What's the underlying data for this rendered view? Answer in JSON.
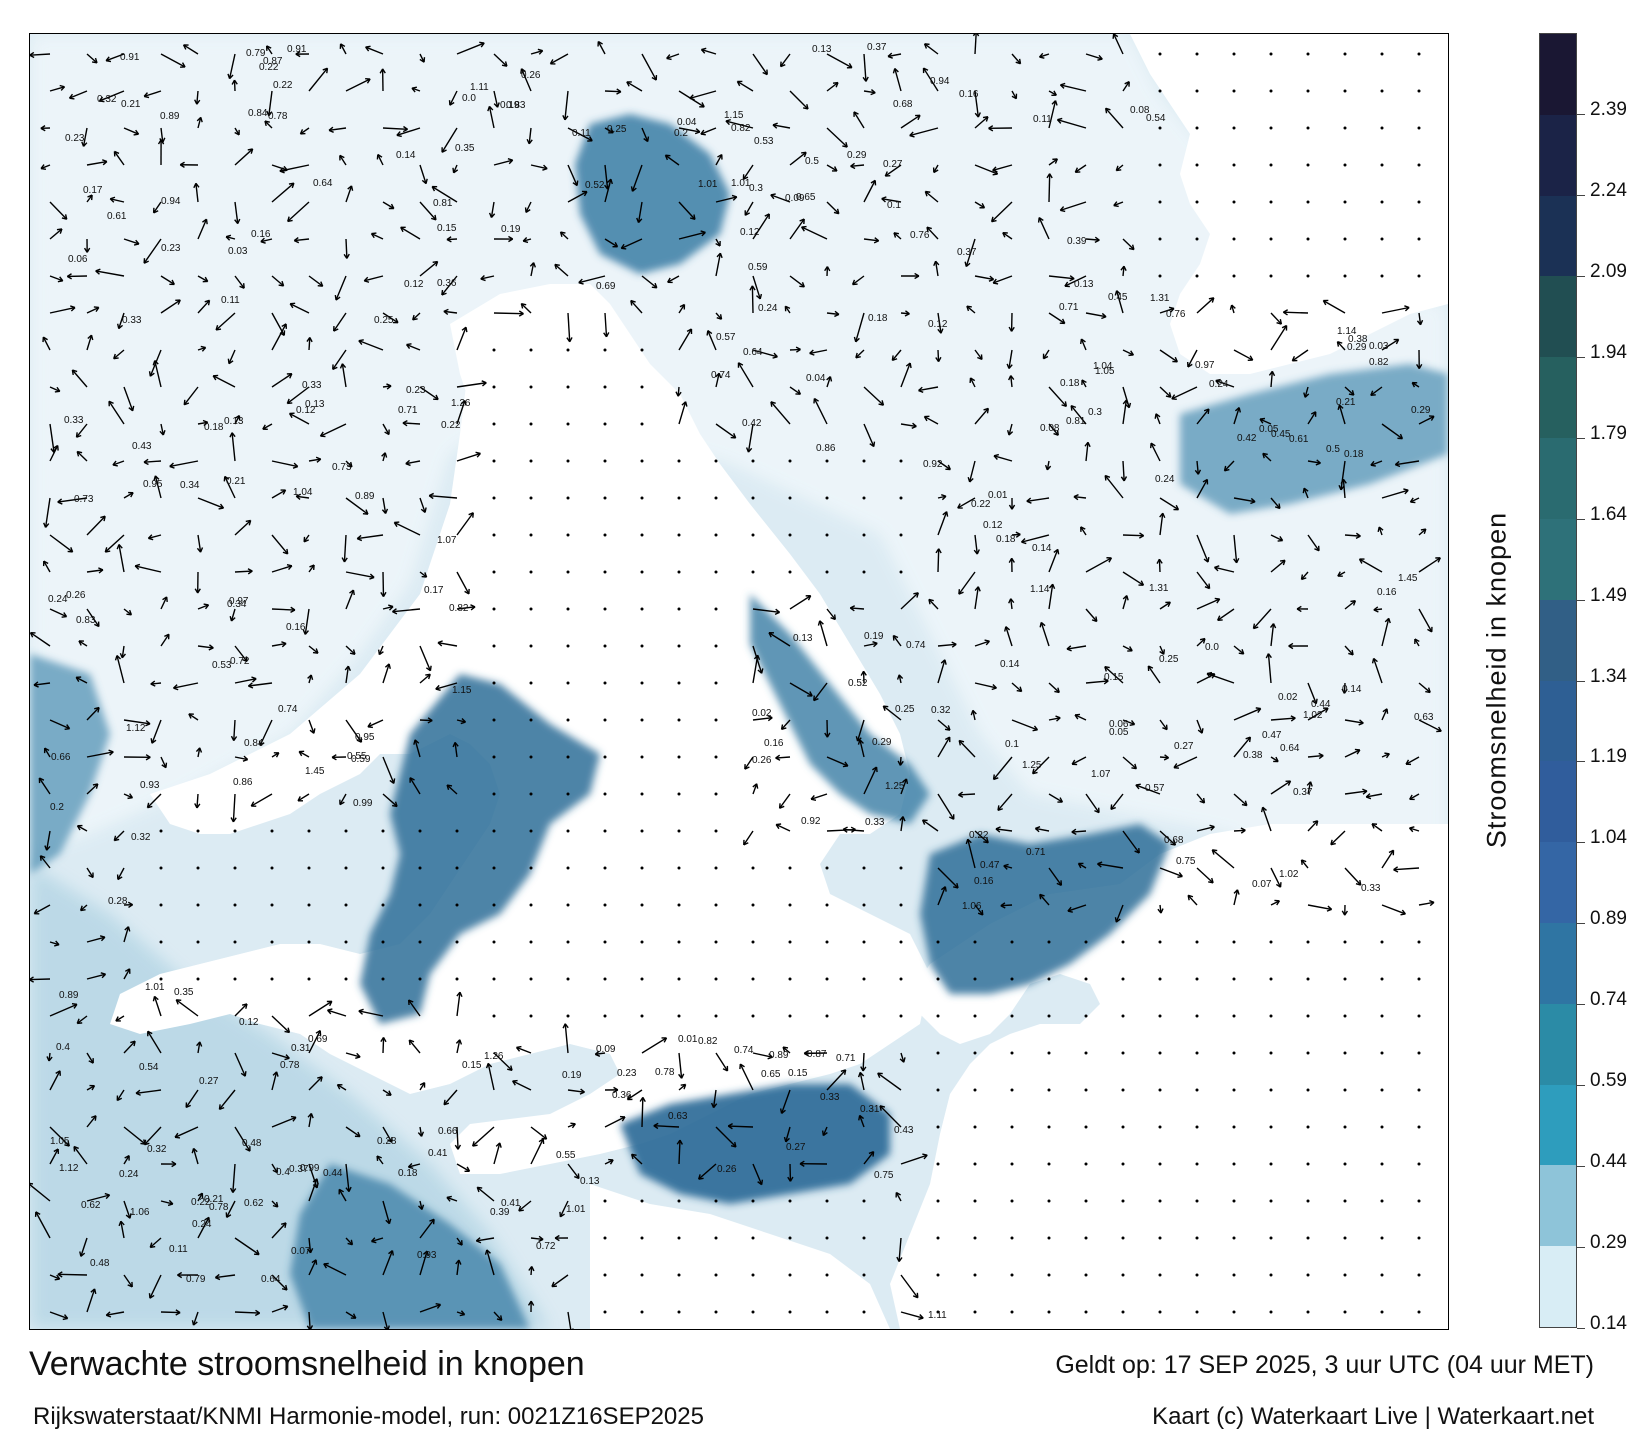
{
  "title": "Verwachte stroomsnelheid in knopen",
  "subtitle": "Rijkswaterstaat/KNMI Harmonie-model, run: 0021Z16SEP2025",
  "valid_time": "Geldt op: 17 SEP 2025, 3 uur UTC (04 uur MET)",
  "credit": "Kaart (c) Waterkaart Live | Waterkaart.net",
  "colorbar": {
    "label": "Stroomsnelheid in knopen",
    "ticks": [
      "2.39",
      "2.24",
      "2.09",
      "1.94",
      "1.79",
      "1.64",
      "1.49",
      "1.34",
      "1.19",
      "1.04",
      "0.89",
      "0.74",
      "0.59",
      "0.44",
      "0.29",
      "0.14"
    ],
    "colors": [
      "#1a1733",
      "#1b2347",
      "#1b3155",
      "#214e52",
      "#26605f",
      "#2a6b70",
      "#2e7179",
      "#315f86",
      "#2e5f94",
      "#305d9c",
      "#3466a5",
      "#2f75a3",
      "#2b8ba6",
      "#2e9dbd",
      "#8ec4d9",
      "#d8edf5"
    ]
  },
  "map": {
    "land_color": "#ffffff",
    "water_light": "#e8f3f8",
    "water_mid": "#7fb6ce",
    "water_dark": "#2f6f98",
    "vector_color": "#000000",
    "speed_labels": [
      "0.29",
      "0.18",
      "0.17",
      "0.24",
      "0.13",
      "0.21",
      "0.24",
      "0.16",
      "0.14",
      "0.23",
      "0.11",
      "0.25",
      "0.22",
      "0.15",
      "0.2",
      "0.18",
      "0.3",
      "0.33",
      "0.01",
      "0.12",
      "0.37",
      "0.31",
      "0.09",
      "0.08",
      "0.36",
      "0.14",
      "0.12",
      "0.13",
      "0.32",
      "0.41",
      "0.24",
      "0.19",
      "0.33",
      "0.06",
      "0.13",
      "0.1",
      "0.07",
      "0.05",
      "0.29",
      "0.25",
      "0.15",
      "0.22",
      "0.33",
      "0.27",
      "0.35",
      "0.12",
      "0.21",
      "0.26",
      "0.16",
      "0.48",
      "0.57",
      "0.26",
      "0.59",
      "0.64",
      "0.61",
      "0.74",
      "0.32",
      "0.22",
      "0.18",
      "0.54",
      "0.37",
      "0.27",
      "0.5",
      "0.52",
      "0.62",
      "0.44",
      "0.4",
      "0.64",
      "0.53",
      "0.38",
      "0.65",
      "0.78",
      "0.82",
      "0.97",
      "0.71",
      "0.87",
      "0.68",
      "0.63",
      "0.91",
      "0.89",
      "1.01",
      "0.95",
      "0.74",
      "0.75",
      "0.73",
      "0.72",
      "0.82",
      "0.89",
      "0.76",
      "0.69",
      "0.79",
      "0.71",
      "1.12",
      "1.15",
      "1.26",
      "1.02",
      "1.45",
      "1.31",
      "1.25",
      "1.01",
      "0.93",
      "0.81",
      "1.06",
      "1.11",
      "0.84",
      "0.94",
      "1.04",
      "1.05",
      "1.14",
      "1.07",
      "0.99",
      "0.86",
      "0.92",
      "0.83",
      "0.78",
      "0.66",
      "0.55",
      "0.47",
      "0.43",
      "0.42",
      "0.45",
      "0.39",
      "0.34",
      "0.28",
      "0.23",
      "0.19",
      "0.16",
      "0.11",
      "0.03",
      "0.02",
      "0.04",
      "0.0"
    ]
  }
}
